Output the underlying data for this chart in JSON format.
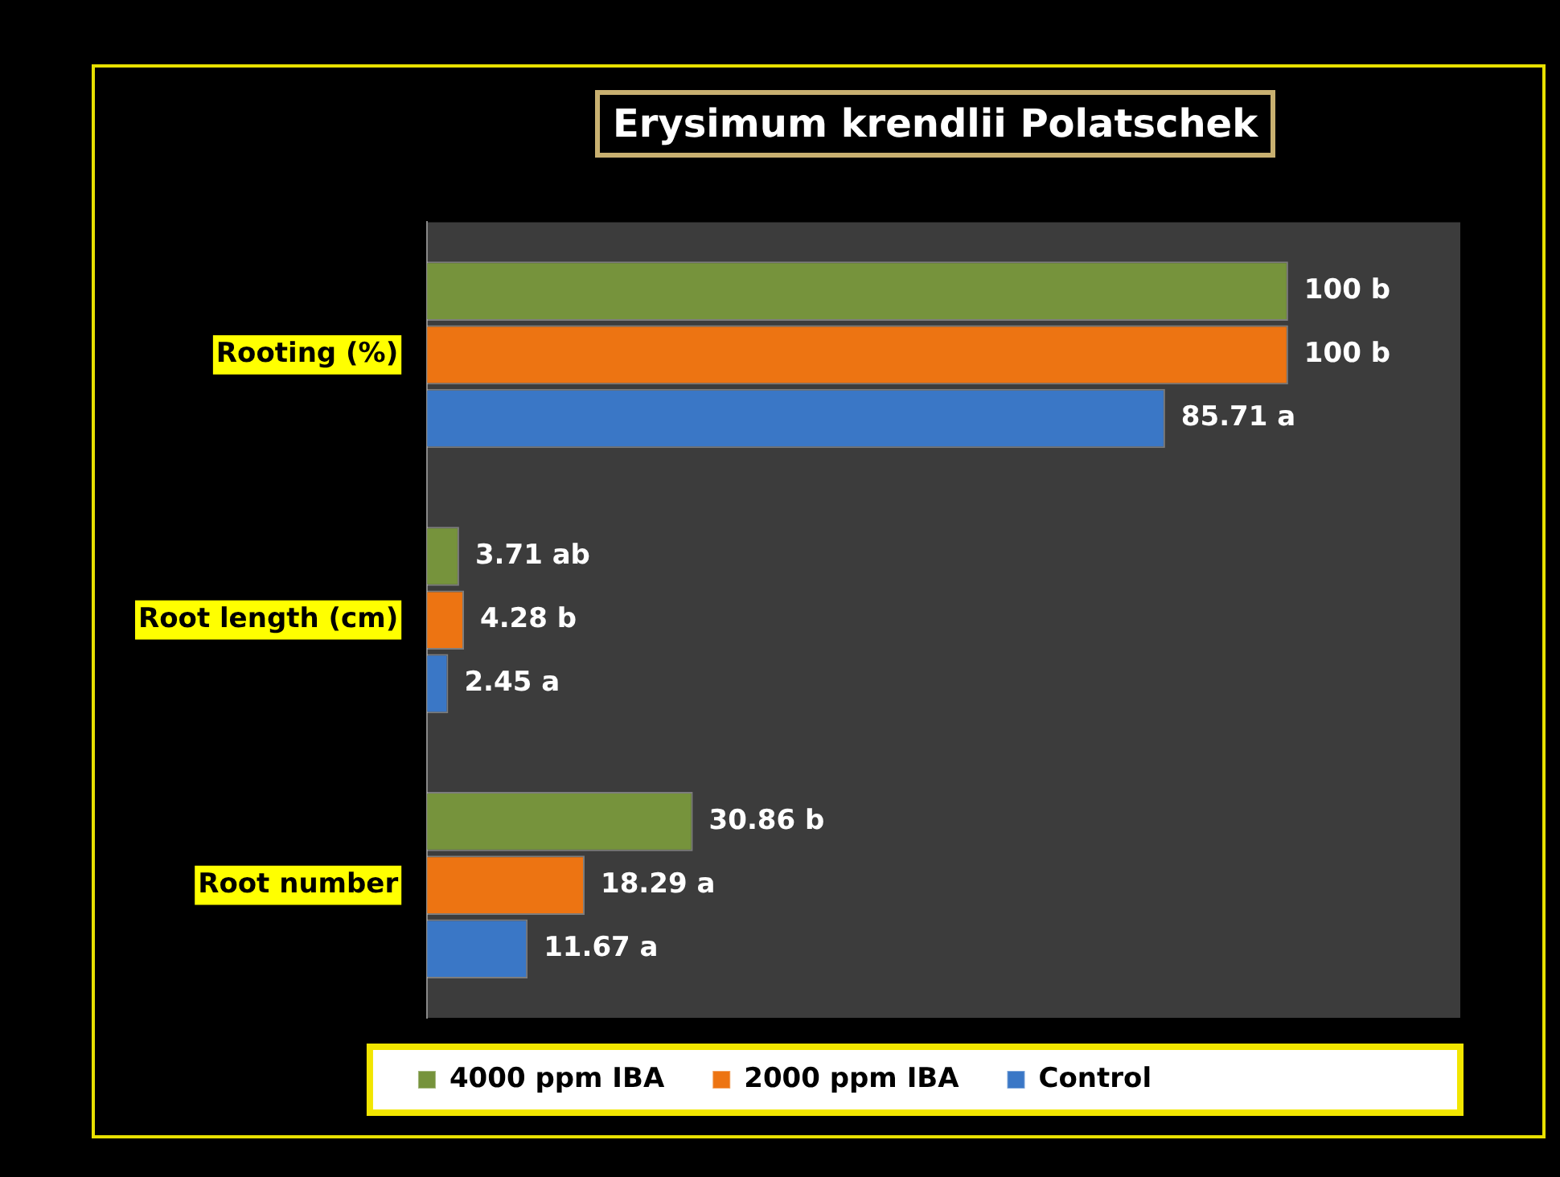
{
  "chart_data": {
    "type": "bar",
    "orientation": "horizontal",
    "title": "Erysimum krendlii Polatschek",
    "categories": [
      "Rooting (%)",
      "Root length (cm)",
      "Root number"
    ],
    "series": [
      {
        "name": "4000 ppm IBA",
        "color": "#76933c",
        "values": [
          100,
          3.71,
          30.86
        ],
        "value_labels": [
          "100 b",
          "3.71 ab",
          "30.86 b"
        ]
      },
      {
        "name": "2000 ppm IBA",
        "color": "#ed7412",
        "values": [
          100,
          4.28,
          18.29
        ],
        "value_labels": [
          "100 b",
          "4.28 b",
          "18.29 a"
        ]
      },
      {
        "name": "Control",
        "color": "#3a77c6",
        "values": [
          85.71,
          2.45,
          11.67
        ],
        "value_labels": [
          "85.71 a",
          "2.45 a",
          "11.67 a"
        ]
      }
    ],
    "xlim": [
      0,
      120
    ],
    "tick_labels": "y",
    "legend": "bottom"
  }
}
